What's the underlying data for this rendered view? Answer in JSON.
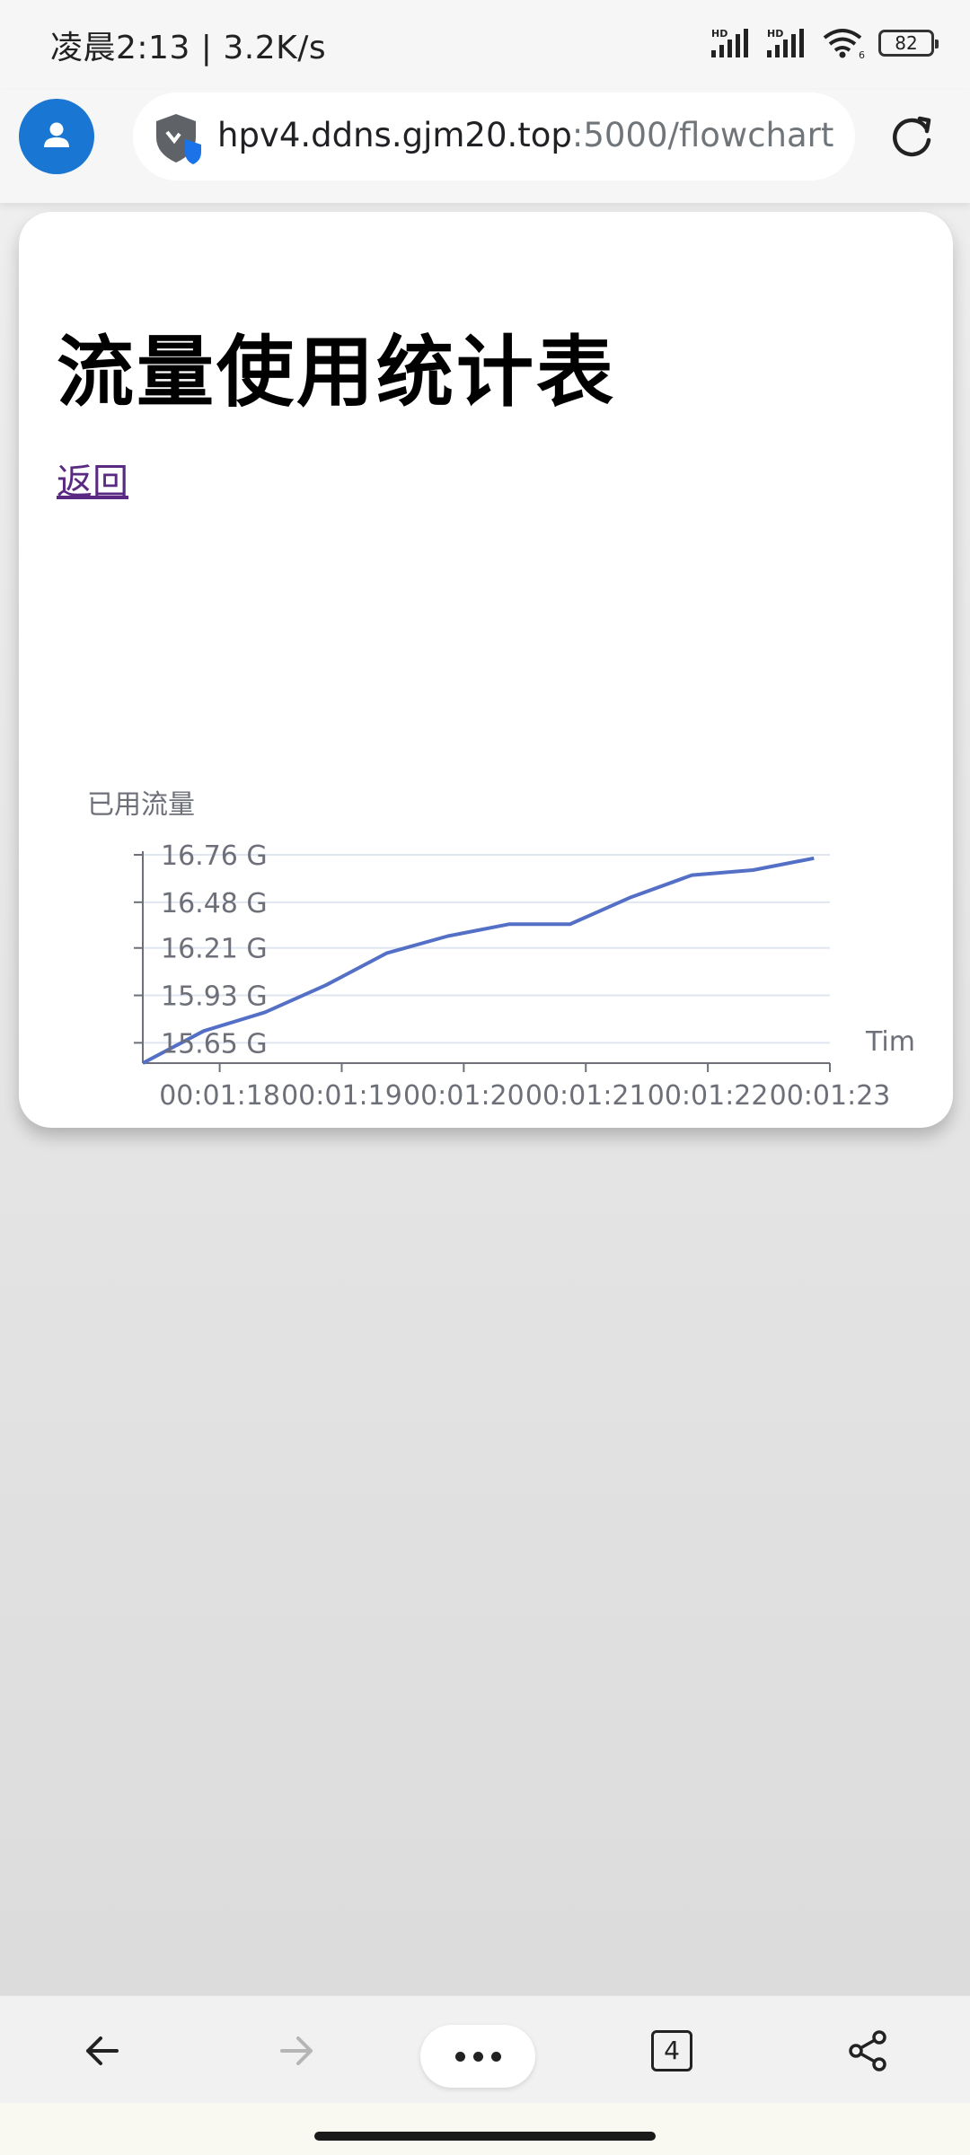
{
  "status_bar": {
    "time": "凌晨2:13",
    "separator": "|",
    "net_speed": "3.2K/s",
    "signal1_label": "HD",
    "signal2_label": "HD",
    "wifi_label": "6",
    "battery": "82"
  },
  "browser": {
    "url_host": "hpv4.ddns.gjm20.top",
    "url_path": ":5000/flowchart"
  },
  "page": {
    "title": "流量使用统计表",
    "back_link": "返回"
  },
  "chart_data": {
    "type": "line",
    "ylabel": "已用流量",
    "xlabel": "Tim",
    "x_ticks": [
      "00:01:18",
      "00:01:19",
      "00:01:20",
      "00:01:21",
      "00:01:22",
      "00:01:23"
    ],
    "y_ticks": [
      "16.76 G",
      "16.48 G",
      "16.21 G",
      "15.93 G",
      "15.65 G"
    ],
    "y_tick_values": [
      16.76,
      16.48,
      16.21,
      15.93,
      15.65
    ],
    "ylim": [
      15.53,
      16.76
    ],
    "series": [
      {
        "color": "#5470c6",
        "points": [
          {
            "t": 77.37,
            "v": 15.53
          },
          {
            "t": 77.87,
            "v": 15.72
          },
          {
            "t": 78.37,
            "v": 15.83
          },
          {
            "t": 78.87,
            "v": 15.99
          },
          {
            "t": 79.37,
            "v": 16.18
          },
          {
            "t": 79.87,
            "v": 16.28
          },
          {
            "t": 80.37,
            "v": 16.35
          },
          {
            "t": 80.87,
            "v": 16.35
          },
          {
            "t": 81.37,
            "v": 16.51
          },
          {
            "t": 81.87,
            "v": 16.64
          },
          {
            "t": 82.37,
            "v": 16.67
          },
          {
            "t": 82.87,
            "v": 16.74
          }
        ]
      }
    ],
    "grid": true
  },
  "bottom_bar": {
    "tab_count": "4"
  }
}
